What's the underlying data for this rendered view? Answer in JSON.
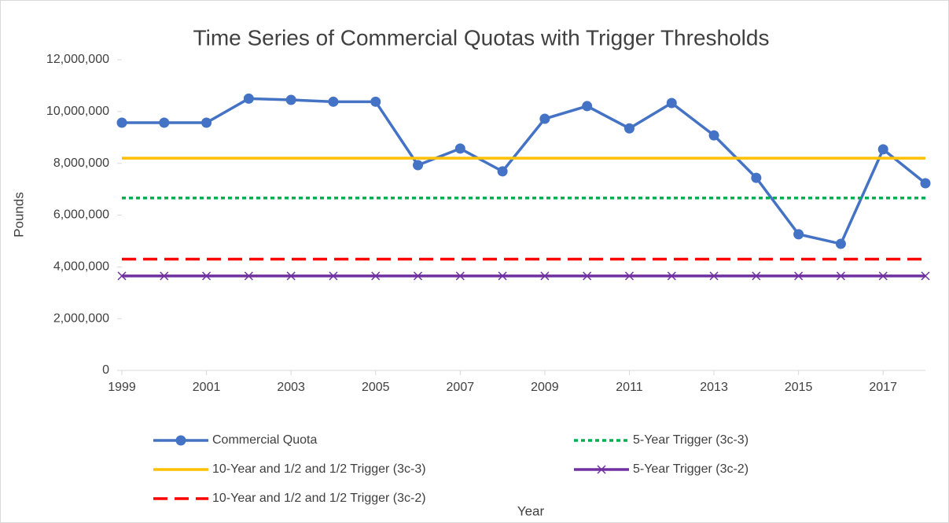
{
  "chart_data": {
    "type": "line",
    "title": "Time Series of Commercial Quotas with Trigger Thresholds",
    "x_label": "Year",
    "y_label": "Pounds",
    "x": [
      1999,
      2000,
      2001,
      2002,
      2003,
      2004,
      2005,
      2006,
      2007,
      2008,
      2009,
      2010,
      2011,
      2012,
      2013,
      2014,
      2015,
      2016,
      2017,
      2018
    ],
    "xlim": [
      1999,
      2018
    ],
    "xticks": [
      1999,
      2001,
      2003,
      2005,
      2007,
      2009,
      2011,
      2013,
      2015,
      2017
    ],
    "ylim": [
      0,
      12000000
    ],
    "yticks": [
      0,
      {
        "value": 2000000,
        "label": "2,000,000"
      },
      {
        "value": 4000000,
        "label": "4,000,000"
      },
      {
        "value": 6000000,
        "label": "6,000,000"
      },
      {
        "value": 8000000,
        "label": "8,000,000"
      },
      {
        "value": 10000000,
        "label": "10,000,000"
      },
      {
        "value": 12000000,
        "label": "12,000,000"
      }
    ],
    "grid": false,
    "series": [
      {
        "name": "Commercial Quota",
        "color": "#4472c4",
        "line_style": "solid",
        "marker": "circle",
        "values": [
          9570000,
          9570000,
          9570000,
          10500000,
          10450000,
          10380000,
          10380000,
          7930000,
          8570000,
          7690000,
          9720000,
          10210000,
          9350000,
          10330000,
          9080000,
          7440000,
          5260000,
          4890000,
          8540000,
          7230000
        ]
      },
      {
        "name": "5-Year Trigger (3c-3)",
        "color": "#00b050",
        "line_style": "dotted",
        "marker": "none",
        "values": [
          6660000,
          6660000,
          6660000,
          6660000,
          6660000,
          6660000,
          6660000,
          6660000,
          6660000,
          6660000,
          6660000,
          6660000,
          6660000,
          6660000,
          6660000,
          6660000,
          6660000,
          6660000,
          6660000,
          6660000
        ]
      },
      {
        "name": "10-Year and 1/2 and 1/2 Trigger (3c-3)",
        "color": "#ffc000",
        "line_style": "solid",
        "marker": "none",
        "values": [
          8200000,
          8200000,
          8200000,
          8200000,
          8200000,
          8200000,
          8200000,
          8200000,
          8200000,
          8200000,
          8200000,
          8200000,
          8200000,
          8200000,
          8200000,
          8200000,
          8200000,
          8200000,
          8200000,
          8200000
        ]
      },
      {
        "name": "5-Year Trigger (3c-2)",
        "color": "#7030a0",
        "line_style": "solid",
        "marker": "x",
        "values": [
          3650000,
          3650000,
          3650000,
          3650000,
          3650000,
          3650000,
          3650000,
          3650000,
          3650000,
          3650000,
          3650000,
          3650000,
          3650000,
          3650000,
          3650000,
          3650000,
          3650000,
          3650000,
          3650000,
          3650000
        ]
      },
      {
        "name": "10-Year and 1/2 and 1/2 Trigger (3c-2)",
        "color": "#ff0000",
        "line_style": "dashed",
        "marker": "none",
        "values": [
          4300000,
          4300000,
          4300000,
          4300000,
          4300000,
          4300000,
          4300000,
          4300000,
          4300000,
          4300000,
          4300000,
          4300000,
          4300000,
          4300000,
          4300000,
          4300000,
          4300000,
          4300000,
          4300000,
          4300000
        ]
      }
    ]
  }
}
